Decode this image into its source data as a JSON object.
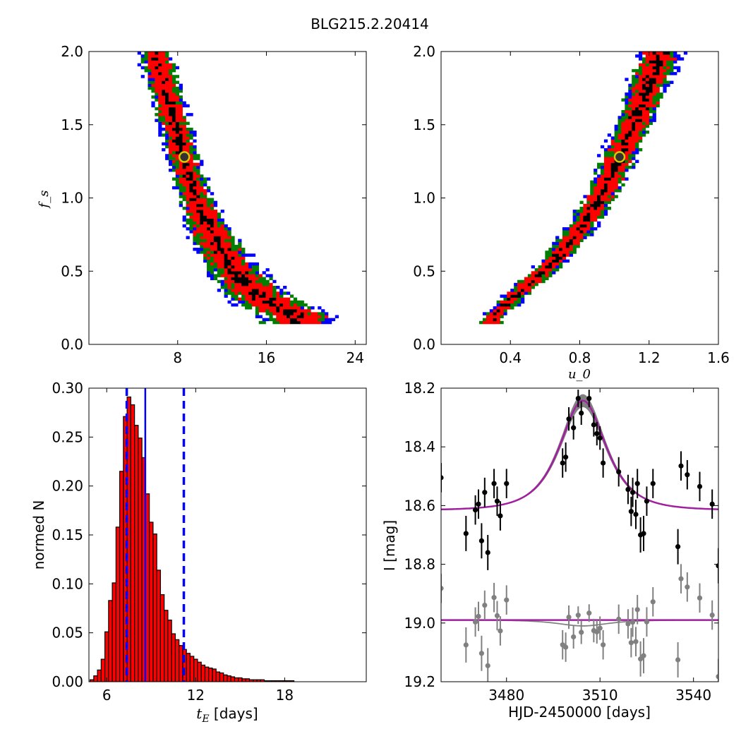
{
  "figure": {
    "title": "BLG215.2.20414"
  },
  "chart_data": [
    {
      "id": "fs_vs_tE",
      "type": "heatmap",
      "title": "",
      "xlabel": "",
      "ylabel": "f_s",
      "xlim": [
        0,
        25
      ],
      "ylim": [
        0,
        2.0
      ],
      "xticks": [
        8,
        16,
        24
      ],
      "yticks": [
        0.0,
        0.5,
        1.0,
        1.5,
        2.0
      ],
      "xtick_labels": [
        "8",
        "16",
        "24"
      ],
      "ytick_labels": [
        "0.0",
        "0.5",
        "1.0",
        "1.5",
        "2.0"
      ],
      "levels": [
        "1-sigma",
        "2-sigma",
        "3-sigma",
        "4-sigma"
      ],
      "level_colors": [
        "#000000",
        "#ff0000",
        "#007f00",
        "#0000ff"
      ],
      "ridge_x": [
        5.9,
        6.7,
        7.4,
        8.1,
        8.8,
        9.6,
        10.5,
        11.5,
        12.7,
        14.1,
        15.6,
        17.3,
        18.8
      ],
      "ridge_y": [
        2.0,
        1.8,
        1.6,
        1.4,
        1.2,
        1.0,
        0.85,
        0.7,
        0.55,
        0.42,
        0.32,
        0.24,
        0.19
      ],
      "best_fit": {
        "x": 8.6,
        "y": 1.28
      }
    },
    {
      "id": "fs_vs_u0",
      "type": "heatmap",
      "title": "",
      "xlabel": "u_0",
      "ylabel": "",
      "xlim": [
        0.0,
        1.6
      ],
      "ylim": [
        0,
        2.0
      ],
      "xticks": [
        0.4,
        0.8,
        1.2,
        1.6
      ],
      "yticks": [
        0.0,
        0.5,
        1.0,
        1.5,
        2.0
      ],
      "xtick_labels": [
        "0.4",
        "0.8",
        "1.2",
        "1.6"
      ],
      "ytick_labels": [
        "0.0",
        "0.5",
        "1.0",
        "1.5",
        "2.0"
      ],
      "levels": [
        "1-sigma",
        "2-sigma",
        "3-sigma",
        "4-sigma"
      ],
      "level_colors": [
        "#000000",
        "#ff0000",
        "#007f00",
        "#0000ff"
      ],
      "ridge_x": [
        0.29,
        0.4,
        0.52,
        0.65,
        0.78,
        0.9,
        1.0,
        1.08,
        1.15,
        1.21,
        1.27
      ],
      "ridge_y": [
        0.18,
        0.3,
        0.43,
        0.57,
        0.75,
        0.97,
        1.2,
        1.42,
        1.62,
        1.82,
        2.0
      ],
      "best_fit": {
        "x": 1.03,
        "y": 1.28
      }
    },
    {
      "id": "tE_histogram",
      "type": "bar",
      "title": "",
      "xlabel": "t_E [days]",
      "ylabel": "normed N",
      "xlim": [
        4.8,
        23.5
      ],
      "ylim": [
        0,
        0.3
      ],
      "xticks": [
        6,
        12,
        18
      ],
      "yticks": [
        0.0,
        0.05,
        0.1,
        0.15,
        0.2,
        0.25,
        0.3
      ],
      "xtick_labels": [
        "6",
        "12",
        "18"
      ],
      "ytick_labels": [
        "0.00",
        "0.05",
        "0.10",
        "0.15",
        "0.20",
        "0.25",
        "0.30"
      ],
      "bin_width": 0.25,
      "bin_start": 4.875,
      "values": [
        0.002,
        0.006,
        0.012,
        0.023,
        0.051,
        0.083,
        0.101,
        0.158,
        0.215,
        0.271,
        0.291,
        0.283,
        0.262,
        0.249,
        0.229,
        0.192,
        0.163,
        0.151,
        0.114,
        0.089,
        0.073,
        0.063,
        0.049,
        0.043,
        0.037,
        0.033,
        0.029,
        0.026,
        0.023,
        0.02,
        0.017,
        0.015,
        0.014,
        0.013,
        0.01,
        0.009,
        0.007,
        0.006,
        0.005,
        0.004,
        0.004,
        0.003,
        0.003,
        0.002,
        0.002,
        0.002,
        0.002,
        0.001,
        0.001,
        0.001,
        0.001,
        0.001,
        0.001,
        0.001,
        0.001
      ],
      "bar_color": "#ff0000",
      "median": 8.6,
      "interval": [
        7.35,
        11.2
      ],
      "line_color": "#0000ff"
    },
    {
      "id": "light_curve",
      "type": "scatter",
      "title": "",
      "xlabel": "HJD-2450000 [days]",
      "ylabel": "I [mag]",
      "xlim": [
        3459,
        3548
      ],
      "ylim": [
        19.2,
        18.2
      ],
      "y_inverted": true,
      "xticks": [
        3480,
        3510,
        3540
      ],
      "yticks": [
        18.2,
        18.4,
        18.6,
        18.8,
        19.0,
        19.2
      ],
      "xtick_labels": [
        "3480",
        "3510",
        "3540"
      ],
      "ytick_labels": [
        "18.2",
        "18.4",
        "18.6",
        "18.8",
        "19.0",
        "19.2"
      ],
      "model": {
        "t0": 3504.5,
        "tE": 8.6,
        "u0": 1.03,
        "fs": 1.28,
        "baseline": 18.616,
        "residual_offset": 18.99
      },
      "data_color": "#000000",
      "residual_color": "#808080",
      "model_color": "#a020a0",
      "band_color": "#808080",
      "points": [
        {
          "t": 3459.0,
          "mag": 18.505,
          "err": 0.05
        },
        {
          "t": 3467.0,
          "mag": 18.695,
          "err": 0.06
        },
        {
          "t": 3470.0,
          "mag": 18.615,
          "err": 0.05
        },
        {
          "t": 3471.0,
          "mag": 18.595,
          "err": 0.05
        },
        {
          "t": 3472.0,
          "mag": 18.72,
          "err": 0.06
        },
        {
          "t": 3473.0,
          "mag": 18.555,
          "err": 0.05
        },
        {
          "t": 3474.0,
          "mag": 18.76,
          "err": 0.06
        },
        {
          "t": 3476.0,
          "mag": 18.525,
          "err": 0.05
        },
        {
          "t": 3477.0,
          "mag": 18.585,
          "err": 0.05
        },
        {
          "t": 3478.0,
          "mag": 18.635,
          "err": 0.05
        },
        {
          "t": 3480.0,
          "mag": 18.525,
          "err": 0.05
        },
        {
          "t": 3498.0,
          "mag": 18.455,
          "err": 0.05
        },
        {
          "t": 3499.0,
          "mag": 18.435,
          "err": 0.05
        },
        {
          "t": 3500.0,
          "mag": 18.305,
          "err": 0.04
        },
        {
          "t": 3501.5,
          "mag": 18.335,
          "err": 0.04
        },
        {
          "t": 3503.0,
          "mag": 18.235,
          "err": 0.03
        },
        {
          "t": 3504.0,
          "mag": 18.285,
          "err": 0.04
        },
        {
          "t": 3506.5,
          "mag": 18.235,
          "err": 0.03
        },
        {
          "t": 3508.0,
          "mag": 18.325,
          "err": 0.04
        },
        {
          "t": 3509.0,
          "mag": 18.355,
          "err": 0.04
        },
        {
          "t": 3510.0,
          "mag": 18.37,
          "err": 0.04
        },
        {
          "t": 3511.0,
          "mag": 18.455,
          "err": 0.05
        },
        {
          "t": 3516.0,
          "mag": 18.485,
          "err": 0.05
        },
        {
          "t": 3519.0,
          "mag": 18.545,
          "err": 0.05
        },
        {
          "t": 3520.0,
          "mag": 18.62,
          "err": 0.05
        },
        {
          "t": 3520.5,
          "mag": 18.555,
          "err": 0.05
        },
        {
          "t": 3521.5,
          "mag": 18.63,
          "err": 0.05
        },
        {
          "t": 3522.0,
          "mag": 18.525,
          "err": 0.05
        },
        {
          "t": 3523.0,
          "mag": 18.7,
          "err": 0.06
        },
        {
          "t": 3524.0,
          "mag": 18.695,
          "err": 0.06
        },
        {
          "t": 3525.0,
          "mag": 18.585,
          "err": 0.05
        },
        {
          "t": 3527.0,
          "mag": 18.525,
          "err": 0.05
        },
        {
          "t": 3535.0,
          "mag": 18.74,
          "err": 0.06
        },
        {
          "t": 3536.0,
          "mag": 18.465,
          "err": 0.05
        },
        {
          "t": 3538.0,
          "mag": 18.495,
          "err": 0.05
        },
        {
          "t": 3542.0,
          "mag": 18.535,
          "err": 0.05
        },
        {
          "t": 3546.0,
          "mag": 18.595,
          "err": 0.05
        },
        {
          "t": 3548.0,
          "mag": 18.805,
          "err": 0.06
        }
      ]
    }
  ]
}
